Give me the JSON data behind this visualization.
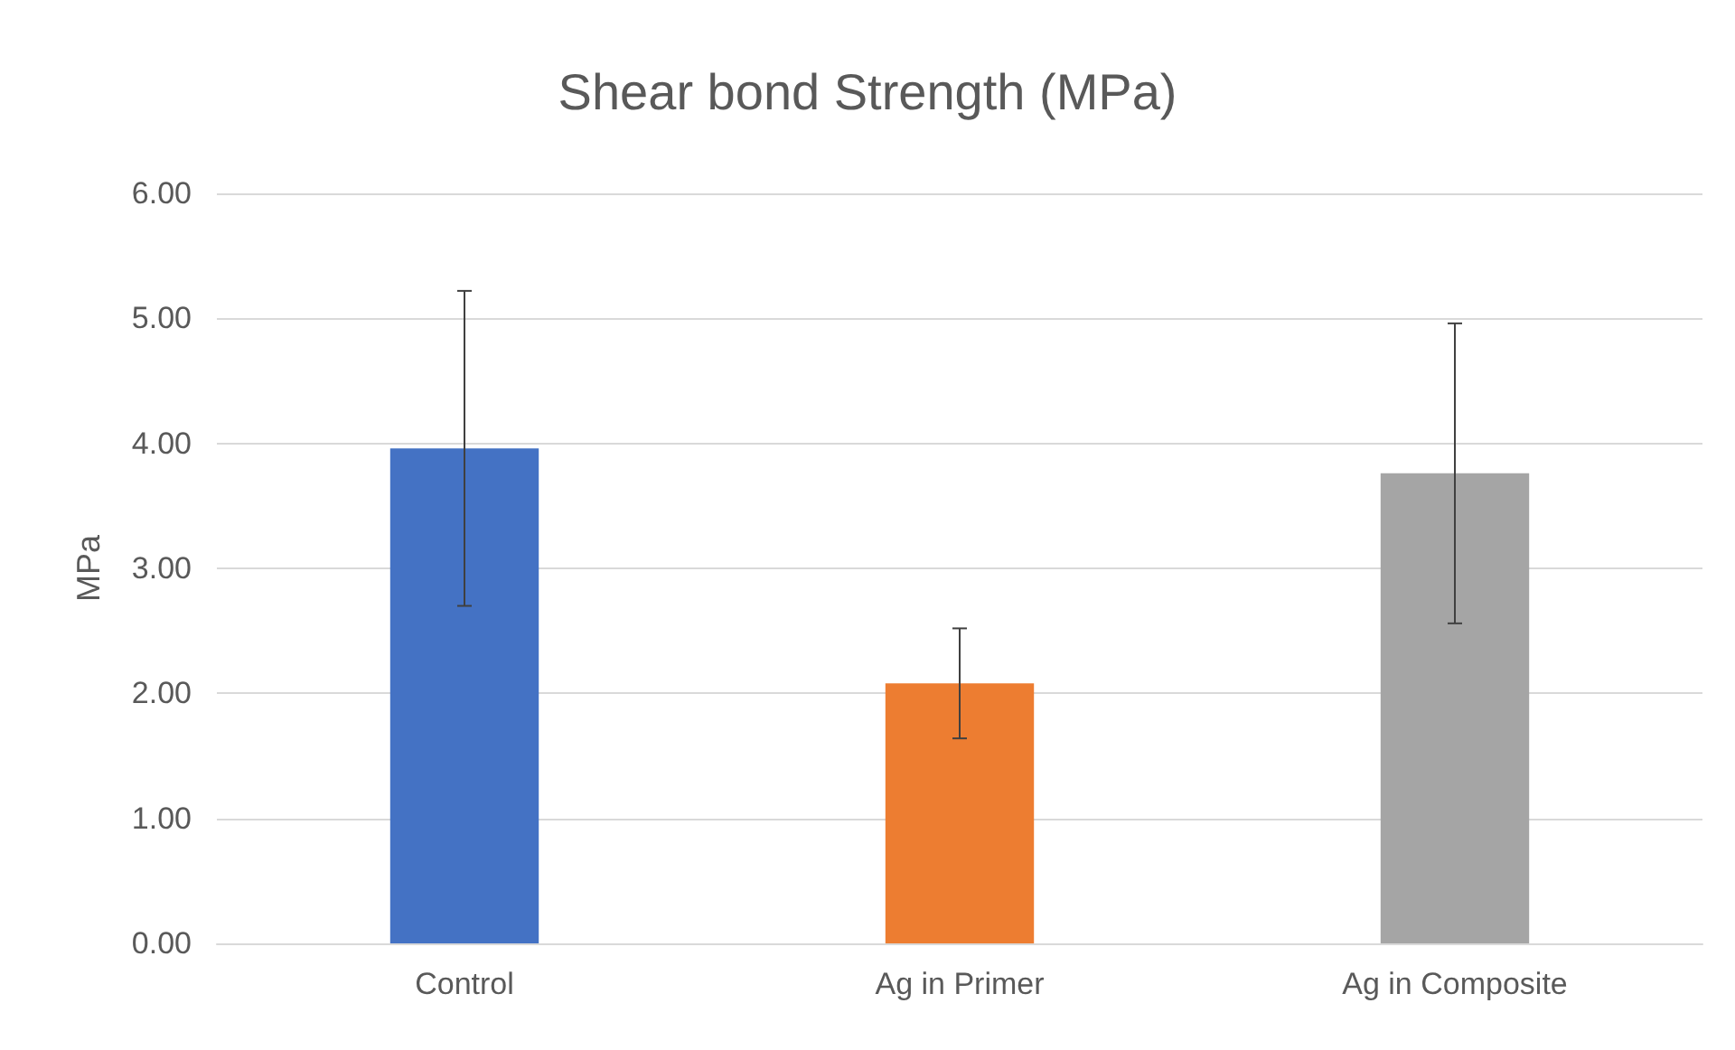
{
  "chart_data": {
    "type": "bar",
    "title": "Shear bond Strength (MPa)",
    "ylabel": "MPa",
    "categories": [
      "Control",
      "Ag in Primer",
      "Ag in Composite"
    ],
    "values": [
      3.96,
      2.08,
      3.76
    ],
    "colors": [
      "#4472c4",
      "#ed7d31",
      "#a5a5a5"
    ],
    "errors": [
      1.26,
      0.44,
      1.2
    ],
    "ylim": [
      0,
      6
    ],
    "yticks": [
      {
        "value": 0,
        "label": "0.00"
      },
      {
        "value": 1,
        "label": "1.00"
      },
      {
        "value": 2,
        "label": "2.00"
      },
      {
        "value": 3,
        "label": "3.00"
      },
      {
        "value": 4,
        "label": "4.00"
      },
      {
        "value": 5,
        "label": "5.00"
      },
      {
        "value": 6,
        "label": "6.00"
      }
    ],
    "grid": "y"
  }
}
